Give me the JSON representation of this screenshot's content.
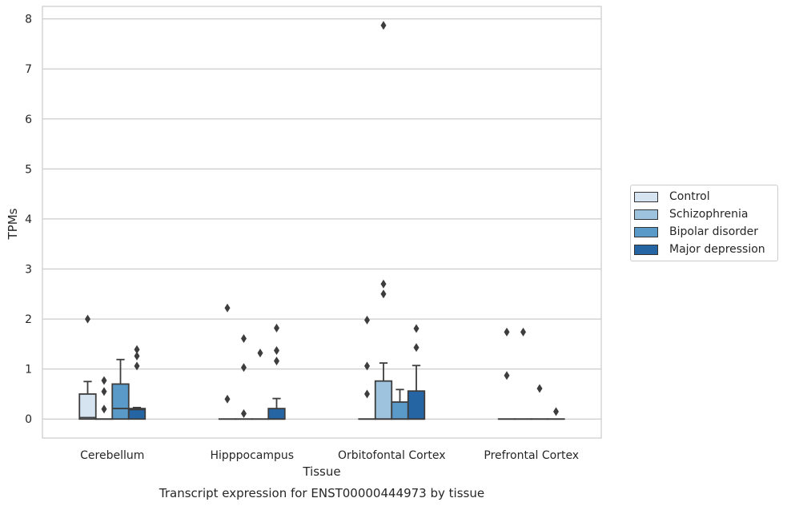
{
  "chart_data": {
    "type": "box",
    "title": "",
    "caption": "Transcript expression for ENST00000444973 by tissue",
    "xlabel": "Tissue",
    "ylabel": "TPMs",
    "ylim": [
      -0.38,
      8.25
    ],
    "yticks": [
      0,
      1,
      2,
      3,
      4,
      5,
      6,
      7,
      8
    ],
    "grid": true,
    "legend_position": "right",
    "categories": [
      "Cerebellum",
      "Hipppocampus",
      "Orbitofontal Cortex",
      "Prefrontal Cortex"
    ],
    "series": [
      {
        "name": "Control",
        "color": "#d6e4f2",
        "boxes": [
          {
            "q1": 0,
            "median": 0.03,
            "q3": 0.5,
            "whisker_low": 0,
            "whisker_high": 0.75,
            "outliers": [
              2.0
            ]
          },
          {
            "q1": 0,
            "median": 0,
            "q3": 0,
            "whisker_low": 0,
            "whisker_high": 0,
            "outliers": [
              2.22,
              0.4
            ]
          },
          {
            "q1": 0,
            "median": 0,
            "q3": 0,
            "whisker_low": 0,
            "whisker_high": 0,
            "outliers": [
              1.98,
              1.06,
              0.5
            ]
          },
          {
            "q1": 0,
            "median": 0,
            "q3": 0,
            "whisker_low": 0,
            "whisker_high": 0,
            "outliers": [
              1.74,
              0.87
            ]
          }
        ]
      },
      {
        "name": "Schizophrenia",
        "color": "#9dc3de",
        "boxes": [
          {
            "q1": 0,
            "median": 0,
            "q3": 0,
            "whisker_low": 0,
            "whisker_high": 0,
            "outliers": [
              0.77,
              0.55,
              0.2
            ]
          },
          {
            "q1": 0,
            "median": 0,
            "q3": 0,
            "whisker_low": 0,
            "whisker_high": 0,
            "outliers": [
              1.61,
              1.03,
              0.11
            ]
          },
          {
            "q1": 0,
            "median": 0,
            "q3": 0.76,
            "whisker_low": 0,
            "whisker_high": 1.12,
            "outliers": [
              7.87,
              2.7,
              2.5
            ]
          },
          {
            "q1": 0,
            "median": 0,
            "q3": 0,
            "whisker_low": 0,
            "whisker_high": 0,
            "outliers": [
              1.74
            ]
          }
        ]
      },
      {
        "name": "Bipolar disorder",
        "color": "#5a9ac9",
        "boxes": [
          {
            "q1": 0,
            "median": 0.21,
            "q3": 0.7,
            "whisker_low": 0,
            "whisker_high": 1.19,
            "outliers": []
          },
          {
            "q1": 0,
            "median": 0,
            "q3": 0,
            "whisker_low": 0,
            "whisker_high": 0,
            "outliers": [
              1.32
            ]
          },
          {
            "q1": 0,
            "median": 0,
            "q3": 0.34,
            "whisker_low": 0,
            "whisker_high": 0.59,
            "outliers": []
          },
          {
            "q1": 0,
            "median": 0,
            "q3": 0,
            "whisker_low": 0,
            "whisker_high": 0,
            "outliers": [
              0.61
            ]
          }
        ]
      },
      {
        "name": "Major depression",
        "color": "#2565a4",
        "boxes": [
          {
            "q1": 0,
            "median": 0.19,
            "q3": 0.21,
            "whisker_low": 0,
            "whisker_high": 0.23,
            "outliers": [
              1.39,
              1.26,
              1.06
            ]
          },
          {
            "q1": 0,
            "median": 0,
            "q3": 0.21,
            "whisker_low": 0,
            "whisker_high": 0.41,
            "outliers": [
              1.82,
              1.37,
              1.16
            ]
          },
          {
            "q1": 0,
            "median": 0,
            "q3": 0.56,
            "whisker_low": 0,
            "whisker_high": 1.07,
            "outliers": [
              1.81,
              1.43
            ]
          },
          {
            "q1": 0,
            "median": 0,
            "q3": 0,
            "whisker_low": 0,
            "whisker_high": 0,
            "outliers": [
              0.15
            ]
          }
        ]
      }
    ]
  }
}
